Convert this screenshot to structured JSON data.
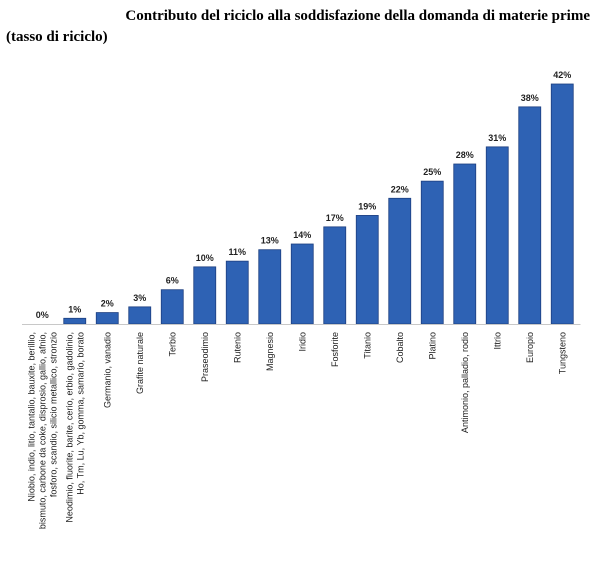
{
  "title_line1": "Contributo del riciclo alla soddisfazione della domanda di materie prime",
  "title_line2": "(tasso di riciclo)",
  "chart_data": {
    "type": "bar",
    "title": "Contributo del riciclo alla soddisfazione della domanda di materie prime (tasso di riciclo)",
    "categories": [
      [
        "Niobio, indio, litio, tantalio, bauxite, berillio,",
        "bismuto, carbone da coke, disprosio, gallio, afnio,",
        "fosforo, scandio, silicio metallico, stronzio"
      ],
      [
        "Neodimio, fluorite, barite, cerio, erbio, gadolinio,",
        "Ho, Tm, Lu, Yb, gomma, samario, borato"
      ],
      [
        "Germanio, vanadio"
      ],
      [
        "Grafite naturale"
      ],
      [
        "Terbio"
      ],
      [
        "Praseodimio"
      ],
      [
        "Rutenio"
      ],
      [
        "Magnesio"
      ],
      [
        "Iridio"
      ],
      [
        "Fosforite"
      ],
      [
        "Titanio"
      ],
      [
        "Cobalto"
      ],
      [
        "Platino"
      ],
      [
        "Antimonio, palladio, rodio"
      ],
      [
        "Ittrio"
      ],
      [
        "Europio"
      ],
      [
        "Tungsteno"
      ]
    ],
    "values": [
      0,
      1,
      2,
      3,
      6,
      10,
      11,
      13,
      14,
      17,
      19,
      22,
      25,
      28,
      31,
      38,
      42
    ],
    "value_labels": [
      "0%",
      "1%",
      "2%",
      "3%",
      "6%",
      "10%",
      "11%",
      "13%",
      "14%",
      "17%",
      "19%",
      "22%",
      "25%",
      "28%",
      "31%",
      "38%",
      "42%"
    ],
    "ylim": [
      0,
      42
    ],
    "xlabel": "",
    "ylabel": "",
    "grid": false,
    "legend": "none",
    "bar_color": "#2e62b4",
    "bar_edge_color": "#1c3f80",
    "axis_color": "#c8c8c8"
  }
}
